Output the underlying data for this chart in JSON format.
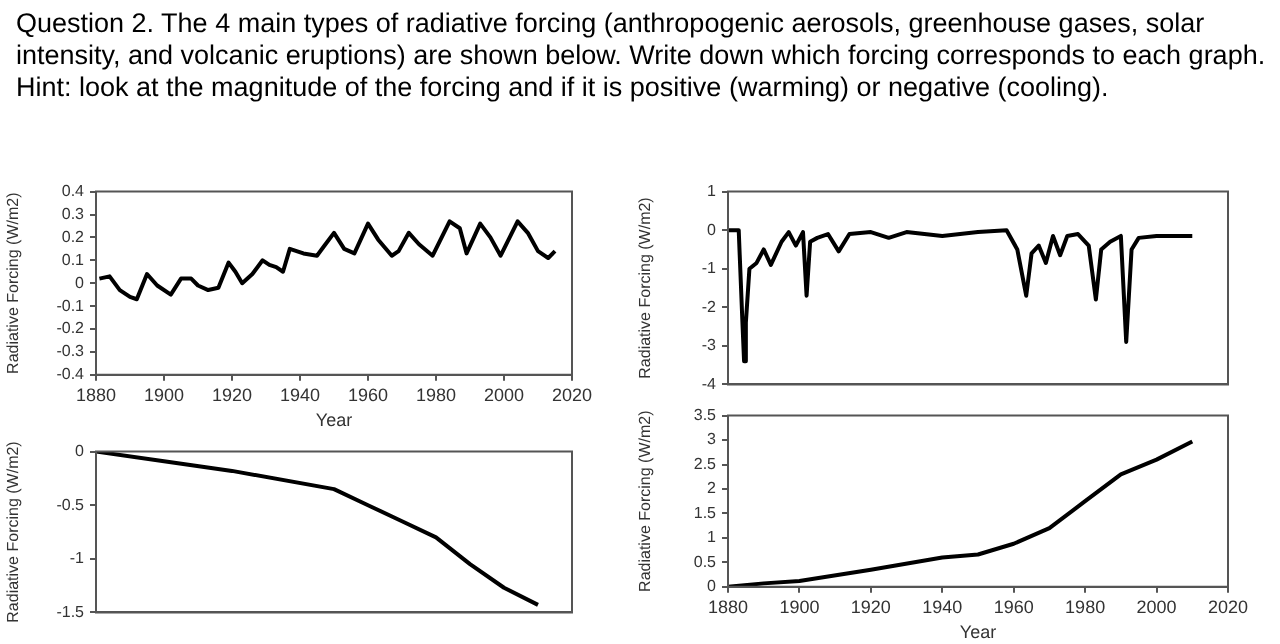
{
  "chart_data": [
    {
      "type": "other",
      "annotations": [
        "Question 2. The 4 main types of radiative forcing (anthropogenic aerosols, greenhouse gases, solar intensity, and volcanic eruptions) are shown below. Write down which forcing corresponds to each graph. Hint: look at the magnitude of the forcing and if it is positive (warming) or negative (cooling)."
      ]
    },
    {
      "type": "line",
      "xlabel": "Year",
      "ylabel": "Radiative Forcing (W/m2)",
      "xlim": [
        1880,
        2020
      ],
      "xticks": [
        1880,
        1900,
        1920,
        1940,
        1960,
        1980,
        2000,
        2020
      ],
      "ylim": [
        -0.4,
        0.4
      ],
      "yticks": [
        -0.4,
        -0.3,
        -0.2,
        -0.1,
        0,
        0.1,
        0.2,
        0.3,
        0.4
      ],
      "grid": false,
      "series": [
        {
          "color": "#000000",
          "x": [
            1881,
            1884,
            1887,
            1890,
            1892,
            1895,
            1898,
            1902,
            1905,
            1908,
            1910,
            1913,
            1916,
            1919,
            1921,
            1923,
            1926,
            1929,
            1931,
            1933,
            1935,
            1937,
            1941,
            1945,
            1947,
            1950,
            1953,
            1956,
            1960,
            1963,
            1967,
            1969,
            1972,
            1975,
            1979,
            1984,
            1987,
            1989,
            1993,
            1996,
            1999,
            2004,
            2007,
            2010,
            2013,
            2015
          ],
          "values": [
            0.02,
            0.03,
            -0.03,
            -0.06,
            -0.07,
            0.04,
            -0.01,
            -0.05,
            0.02,
            0.02,
            -0.01,
            -0.03,
            -0.02,
            0.09,
            0.05,
            0,
            0.04,
            0.1,
            0.08,
            0.07,
            0.05,
            0.15,
            0.13,
            0.12,
            0.16,
            0.22,
            0.15,
            0.13,
            0.26,
            0.19,
            0.12,
            0.14,
            0.22,
            0.17,
            0.12,
            0.27,
            0.24,
            0.13,
            0.26,
            0.2,
            0.12,
            0.27,
            0.22,
            0.14,
            0.11,
            0.14
          ]
        }
      ]
    },
    {
      "type": "line",
      "ylabel": "Radiative Forcing (W/m2)",
      "xlim": [
        1880,
        2020
      ],
      "ylim": [
        -1.5,
        0
      ],
      "yticks": [
        -1.5,
        -1,
        -0.5,
        0
      ],
      "grid": false,
      "tick_labels": "y",
      "series": [
        {
          "color": "#000000",
          "x": [
            1880,
            1900,
            1920,
            1950,
            1960,
            1970,
            1980,
            1990,
            2000,
            2010
          ],
          "values": [
            0,
            -0.09,
            -0.18,
            -0.35,
            -0.5,
            -0.65,
            -0.8,
            -1.05,
            -1.27,
            -1.43
          ]
        }
      ]
    },
    {
      "type": "line",
      "ylabel": "Radiative Forcing (W/m2)",
      "xlim": [
        1880,
        2020
      ],
      "ylim": [
        -4,
        1
      ],
      "yticks": [
        -4,
        -3,
        -2,
        -1,
        0,
        1
      ],
      "grid": false,
      "tick_labels": "y",
      "series": [
        {
          "color": "#000000",
          "x": [
            1880,
            1883,
            1884,
            1884.5,
            1885,
            1886,
            1888,
            1890,
            1892,
            1895,
            1897,
            1899,
            1901,
            1902,
            1903,
            1905,
            1908,
            1911,
            1914,
            1920,
            1925,
            1930,
            1940,
            1950,
            1958,
            1961,
            1963.5,
            1965,
            1967,
            1969,
            1971,
            1973,
            1975,
            1978,
            1981,
            1983,
            1984.5,
            1987,
            1990,
            1991.5,
            1993,
            1995,
            2000,
            2010
          ],
          "values": [
            0,
            0,
            -2.3,
            -3.4,
            -2.4,
            -1,
            -0.85,
            -0.5,
            -0.9,
            -0.3,
            -0.05,
            -0.4,
            -0.05,
            -1.7,
            -0.3,
            -0.2,
            -0.1,
            -0.55,
            -0.1,
            -0.05,
            -0.2,
            -0.05,
            -0.15,
            -0.05,
            0,
            -0.5,
            -1.7,
            -0.6,
            -0.4,
            -0.85,
            -0.15,
            -0.65,
            -0.15,
            -0.1,
            -0.4,
            -1.8,
            -0.5,
            -0.3,
            -0.15,
            -2.9,
            -0.5,
            -0.2,
            -0.15,
            -0.15
          ]
        }
      ]
    },
    {
      "type": "line",
      "xlabel": "Year",
      "ylabel": "Radiative Forcing (W/m2)",
      "xlim": [
        1880,
        2020
      ],
      "xticks": [
        1880,
        1900,
        1920,
        1940,
        1960,
        1980,
        2000,
        2020
      ],
      "ylim": [
        0,
        3.5
      ],
      "yticks": [
        0,
        0.5,
        1,
        1.5,
        2,
        2.5,
        3,
        3.5
      ],
      "grid": false,
      "series": [
        {
          "color": "#000000",
          "x": [
            1880,
            1890,
            1900,
            1920,
            1940,
            1950,
            1960,
            1970,
            1980,
            1990,
            2000,
            2010
          ],
          "values": [
            0,
            0.07,
            0.12,
            0.35,
            0.6,
            0.66,
            0.88,
            1.2,
            1.75,
            2.3,
            2.6,
            2.97
          ]
        }
      ]
    }
  ]
}
